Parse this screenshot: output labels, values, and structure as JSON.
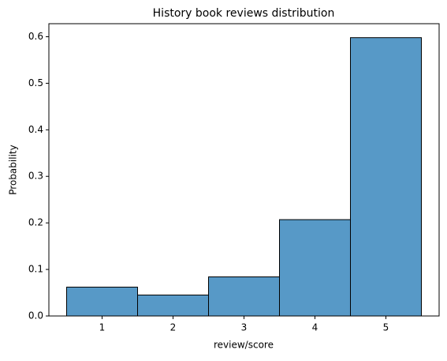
{
  "chart_data": {
    "type": "histogram",
    "title": "History book reviews distribution",
    "x_label": "review/score",
    "y_label": "Probability",
    "bins": [
      0.5,
      1.5,
      2.5,
      3.5,
      4.5,
      5.5
    ],
    "values": [
      0.062,
      0.045,
      0.084,
      0.207,
      0.598
    ],
    "color": "#5799c7",
    "edgecolor": "#000000",
    "xlim": [
      0.25,
      5.75
    ],
    "xticks": [
      1,
      2,
      3,
      4,
      5
    ],
    "ylim": [
      0,
      0.628
    ],
    "yticks": [
      {
        "value": 0,
        "label": "0.0"
      },
      0.1,
      0.2,
      0.3,
      0.4,
      0.5,
      0.6
    ],
    "grid": false
  }
}
